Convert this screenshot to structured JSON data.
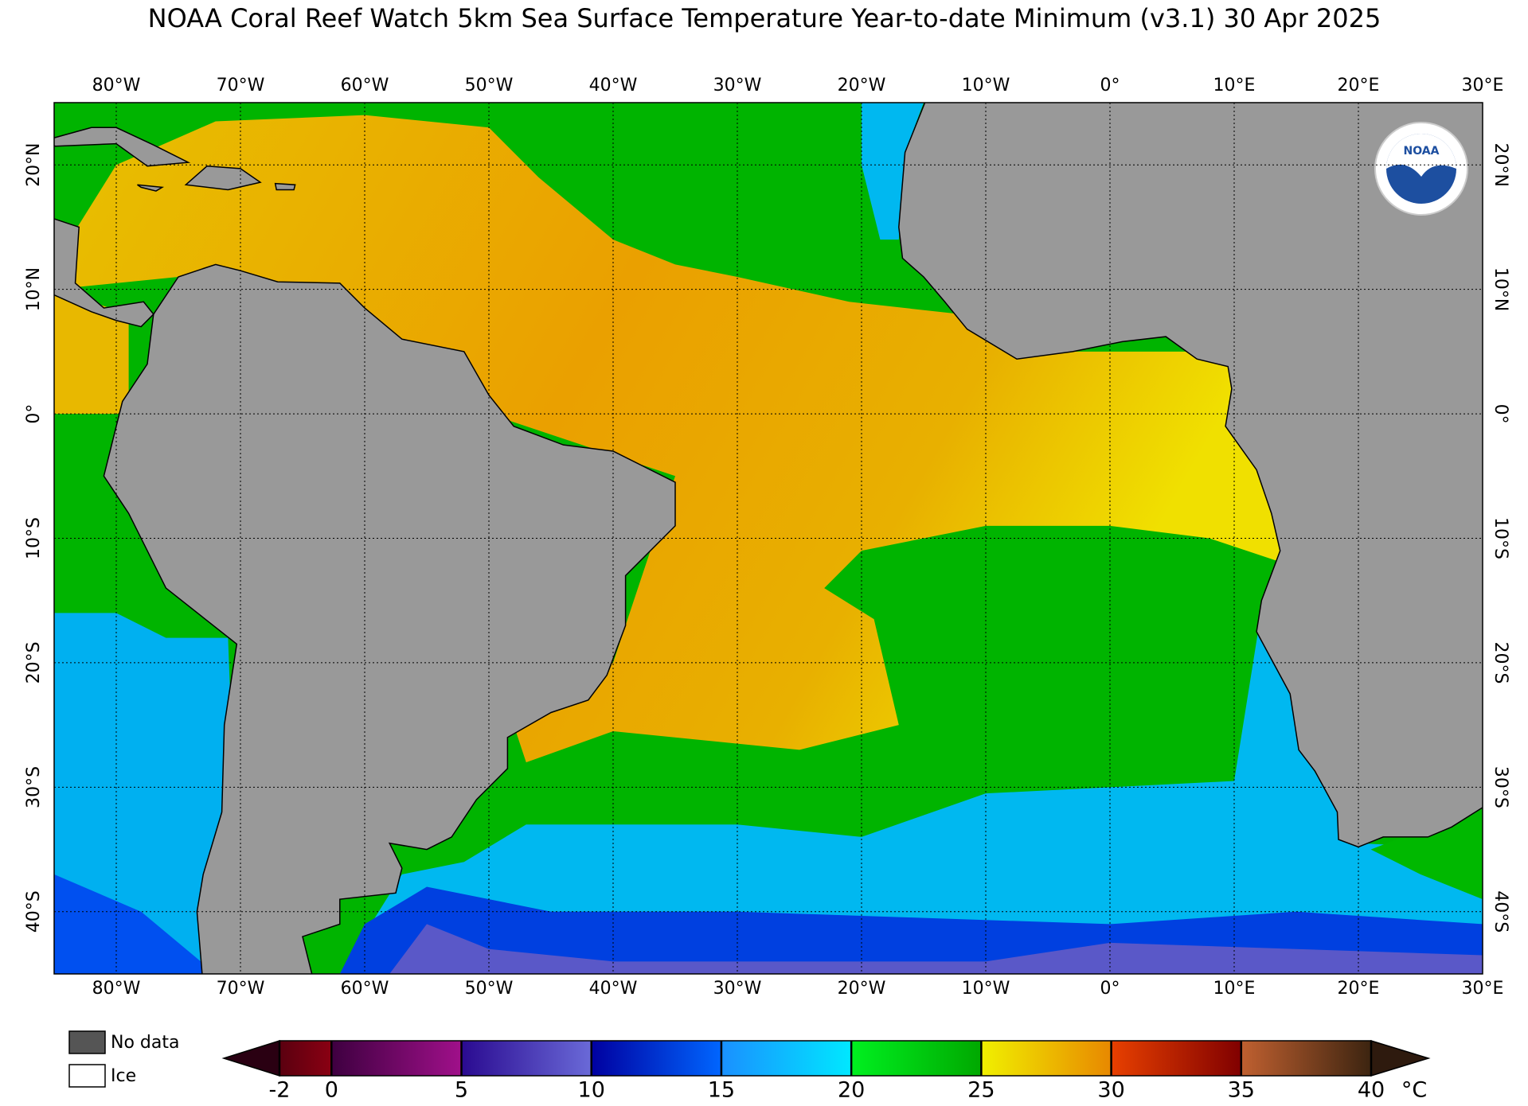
{
  "title": "NOAA Coral Reef Watch 5km Sea Surface Temperature Year-to-date Minimum  (v3.1)   30 Apr 2025",
  "map": {
    "xlim": [
      -85,
      30
    ],
    "ylim": [
      -45,
      25
    ],
    "xticks": [
      {
        "value": -80,
        "label": "80°W"
      },
      {
        "value": -70,
        "label": "70°W"
      },
      {
        "value": -60,
        "label": "60°W"
      },
      {
        "value": -50,
        "label": "50°W"
      },
      {
        "value": -40,
        "label": "40°W"
      },
      {
        "value": -30,
        "label": "30°W"
      },
      {
        "value": -20,
        "label": "20°W"
      },
      {
        "value": -10,
        "label": "10°W"
      },
      {
        "value": 0,
        "label": "0°"
      },
      {
        "value": 10,
        "label": "10°E"
      },
      {
        "value": 20,
        "label": "20°E"
      },
      {
        "value": 30,
        "label": "30°E"
      }
    ],
    "yticks": [
      {
        "value": 20,
        "label": "20°N"
      },
      {
        "value": 10,
        "label": "10°N"
      },
      {
        "value": 0,
        "label": "0°"
      },
      {
        "value": -10,
        "label": "10°S"
      },
      {
        "value": -20,
        "label": "20°S"
      },
      {
        "value": -30,
        "label": "30°S"
      },
      {
        "value": -40,
        "label": "40°S"
      }
    ],
    "grid": true,
    "land_color": "#999999"
  },
  "logo_text": "NOAA",
  "legend": {
    "items": [
      "No data",
      "Ice"
    ],
    "colors": [
      "#555555",
      "#ffffff"
    ]
  },
  "colorbar": {
    "range": [
      -2,
      40
    ],
    "ticks": [
      -2,
      0,
      5,
      10,
      15,
      20,
      25,
      30,
      35,
      40
    ],
    "unit": "°C",
    "under_color": "#2a0012",
    "over_color": "#2e1a0e",
    "segment_colors": [
      [
        "#5a0010",
        "#8a0012"
      ],
      [
        "#3e0040",
        "#a0108a"
      ],
      [
        "#2a0a90",
        "#6a6ad8"
      ],
      [
        "#0000a0",
        "#0066ff"
      ],
      [
        "#1a90ff",
        "#00e8ff"
      ],
      [
        "#00f020",
        "#00a800"
      ],
      [
        "#f0f000",
        "#e88800"
      ],
      [
        "#e84000",
        "#800000"
      ],
      [
        "#c06030",
        "#3c2410"
      ]
    ]
  }
}
